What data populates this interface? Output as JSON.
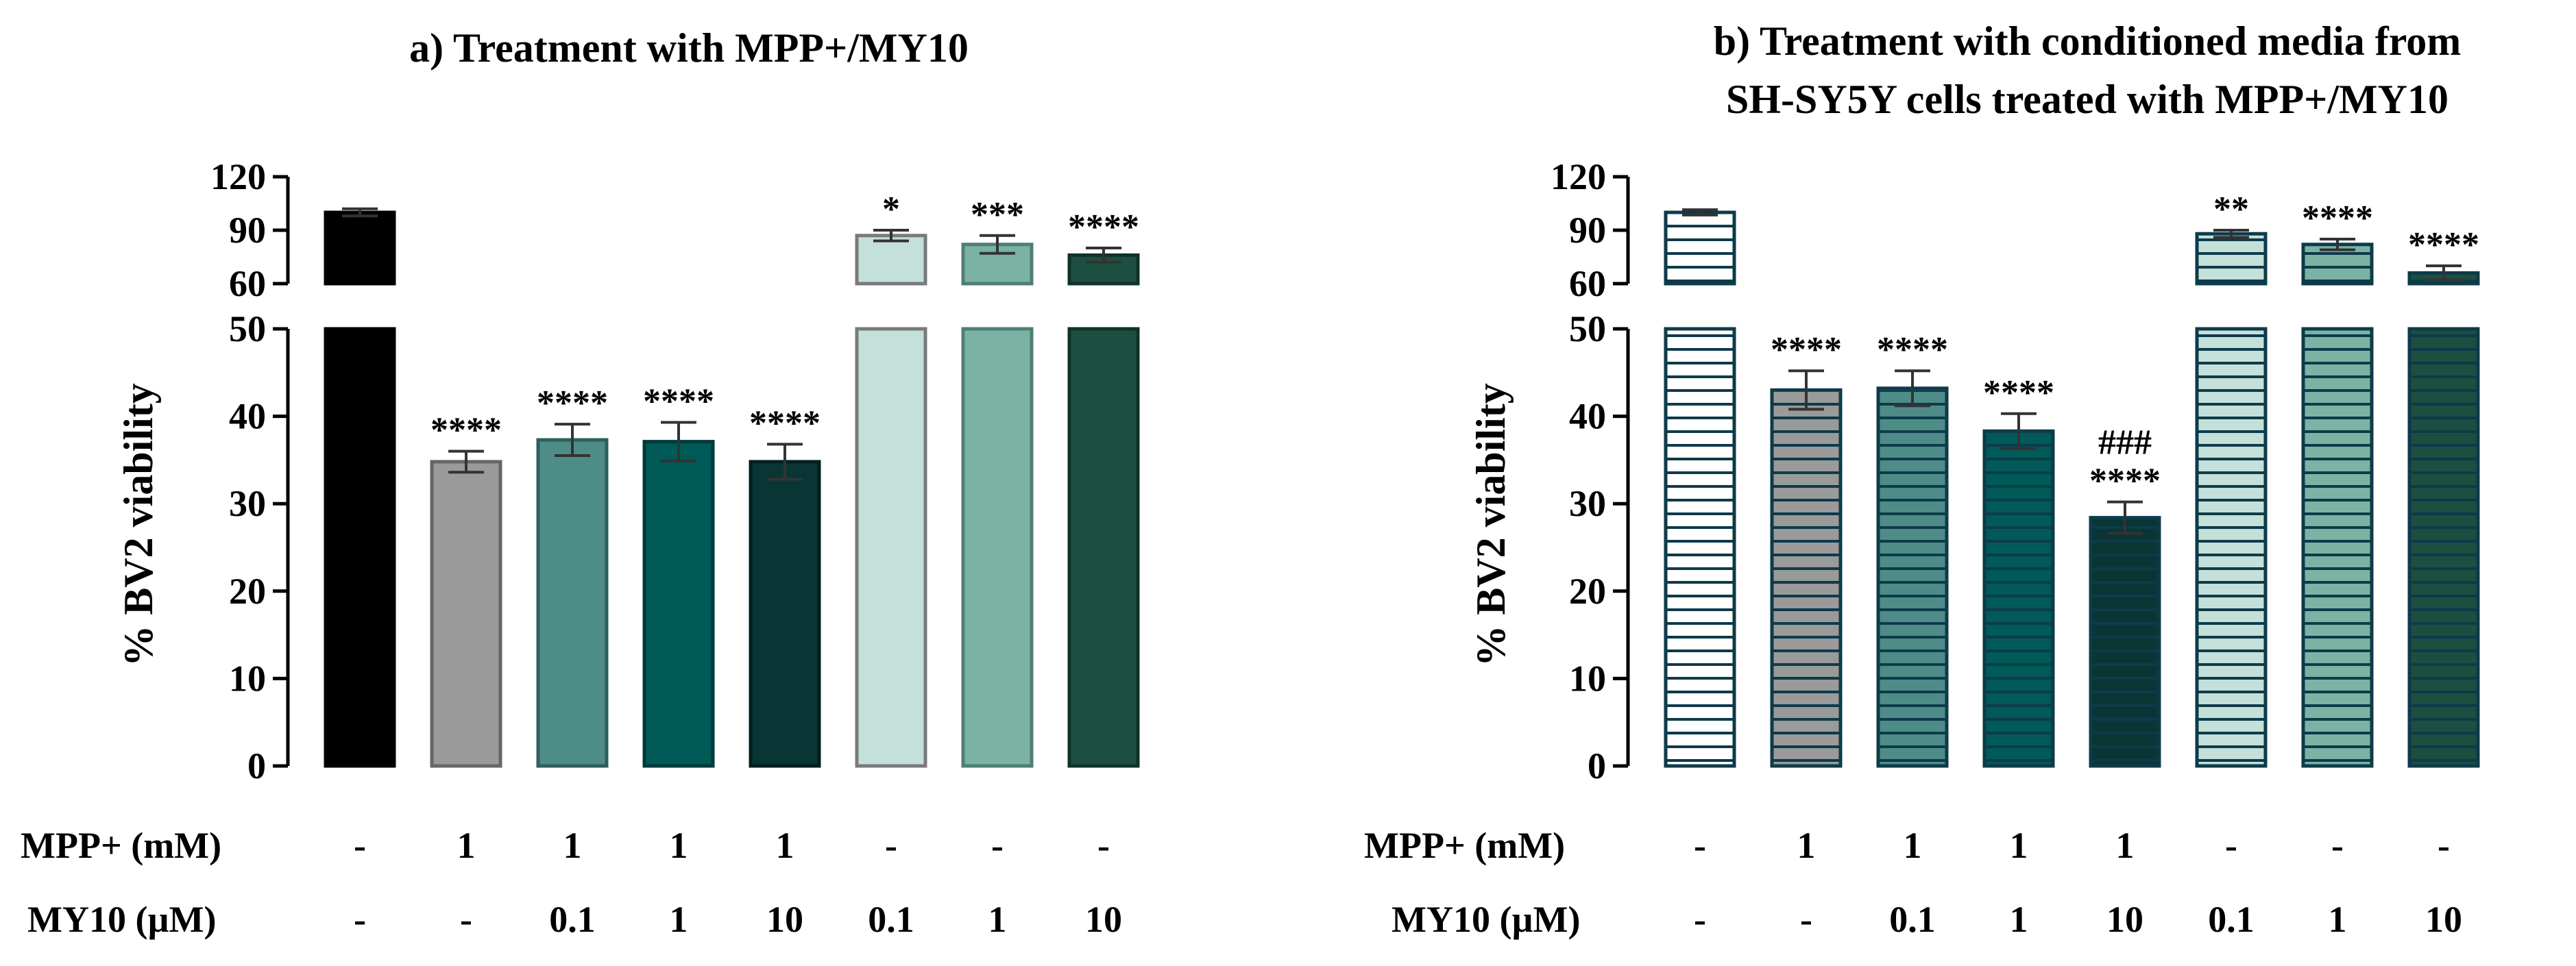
{
  "chart_data": [
    {
      "type": "bar",
      "panel": "a",
      "title": "a) Treatment with MPP+/MY10",
      "ylabel": "% BV2 viability",
      "yaxis_lower": {
        "range": [
          0,
          50
        ],
        "ticks": [
          "0",
          "10",
          "20",
          "30",
          "40",
          "50"
        ]
      },
      "yaxis_upper": {
        "range": [
          60,
          120
        ],
        "ticks": [
          "60",
          "90",
          "120"
        ]
      },
      "row_labels": [
        "MPP+ (mM)",
        "MY10 (µM)"
      ],
      "categories": [
        {
          "mpp": "-",
          "my10": "-",
          "value": 100,
          "error": 2,
          "sig": "",
          "sig2": "",
          "color": "#000000",
          "stroke": "#000000",
          "hatch": false
        },
        {
          "mpp": "1",
          "my10": "-",
          "value": 34.8,
          "error": 1.2,
          "sig": "****",
          "sig2": "",
          "color": "#9a9a9a",
          "stroke": "#666666",
          "hatch": false
        },
        {
          "mpp": "1",
          "my10": "0.1",
          "value": 37.3,
          "error": 1.8,
          "sig": "****",
          "sig2": "",
          "color": "#4e8c88",
          "stroke": "#2f5f5c",
          "hatch": false
        },
        {
          "mpp": "1",
          "my10": "1",
          "value": 37.1,
          "error": 2.2,
          "sig": "****",
          "sig2": "",
          "color": "#005a57",
          "stroke": "#003b39",
          "hatch": false
        },
        {
          "mpp": "1",
          "my10": "10",
          "value": 34.8,
          "error": 2.0,
          "sig": "****",
          "sig2": "",
          "color": "#0a3535",
          "stroke": "#001f1f",
          "hatch": false
        },
        {
          "mpp": "-",
          "my10": "0.1",
          "value": 87,
          "error": 3,
          "sig": "*",
          "sig2": "",
          "color": "#c3e0da",
          "stroke": "#7a7a7a",
          "hatch": false
        },
        {
          "mpp": "-",
          "my10": "1",
          "value": 82,
          "error": 5,
          "sig": "***",
          "sig2": "",
          "color": "#7ab3a4",
          "stroke": "#4f7e73",
          "hatch": false
        },
        {
          "mpp": "-",
          "my10": "10",
          "value": 76,
          "error": 4,
          "sig": "****",
          "sig2": "",
          "color": "#1d4f41",
          "stroke": "#0e3329",
          "hatch": false
        }
      ]
    },
    {
      "type": "bar",
      "panel": "b",
      "title": "b) Treatment with conditioned media from",
      "title_line2": "SH-SY5Y cells treated with MPP+/MY10",
      "ylabel": "% BV2 viability",
      "yaxis_lower": {
        "range": [
          0,
          50
        ],
        "ticks": [
          "0",
          "10",
          "20",
          "30",
          "40",
          "50"
        ]
      },
      "yaxis_upper": {
        "range": [
          60,
          120
        ],
        "ticks": [
          "60",
          "90",
          "120"
        ]
      },
      "row_labels": [
        "MPP+ (mM)",
        "MY10 (µM)"
      ],
      "categories": [
        {
          "mpp": "-",
          "my10": "-",
          "value": 100,
          "error": 1.5,
          "sig": "",
          "sig2": "",
          "color": "#ffffff",
          "stroke": "#0d3b4a",
          "hatch": true
        },
        {
          "mpp": "1",
          "my10": "-",
          "value": 43,
          "error": 2.2,
          "sig": "****",
          "sig2": "",
          "color": "#9a9a9a",
          "stroke": "#0d3b4a",
          "hatch": true
        },
        {
          "mpp": "1",
          "my10": "0.1",
          "value": 43.2,
          "error": 2.0,
          "sig": "****",
          "sig2": "",
          "color": "#4e8c88",
          "stroke": "#0d3b4a",
          "hatch": true
        },
        {
          "mpp": "1",
          "my10": "1",
          "value": 38.3,
          "error": 2.0,
          "sig": "****",
          "sig2": "",
          "color": "#005a57",
          "stroke": "#0d3b4a",
          "hatch": true
        },
        {
          "mpp": "1",
          "my10": "10",
          "value": 28.4,
          "error": 1.8,
          "sig": "****",
          "sig2": "###",
          "color": "#0a3535",
          "stroke": "#0d3b4a",
          "hatch": true
        },
        {
          "mpp": "-",
          "my10": "0.1",
          "value": 88,
          "error": 2,
          "sig": "**",
          "sig2": "",
          "color": "#c3e0da",
          "stroke": "#0d3b4a",
          "hatch": true
        },
        {
          "mpp": "-",
          "my10": "1",
          "value": 82,
          "error": 3,
          "sig": "****",
          "sig2": "",
          "color": "#7ab3a4",
          "stroke": "#0d3b4a",
          "hatch": true
        },
        {
          "mpp": "-",
          "my10": "10",
          "value": 66,
          "error": 4,
          "sig": "****",
          "sig2": "",
          "color": "#1d4f41",
          "stroke": "#0d3b4a",
          "hatch": true
        }
      ]
    }
  ]
}
